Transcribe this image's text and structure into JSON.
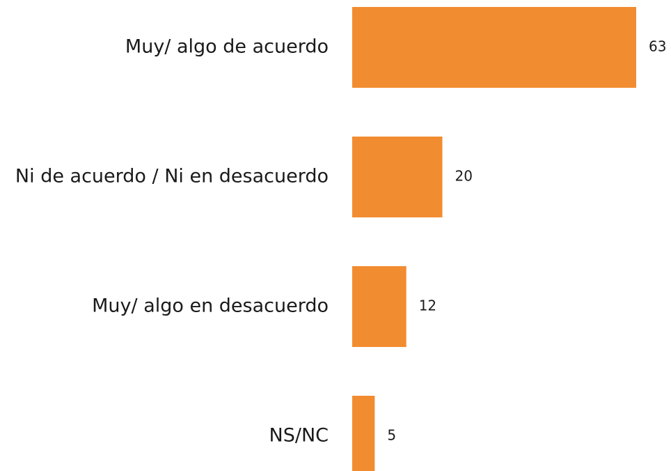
{
  "chart_data": {
    "type": "bar",
    "orientation": "horizontal",
    "categories": [
      "Muy/ algo de acuerdo",
      "Ni de acuerdo / Ni en desacuerdo",
      "Muy/ algo en desacuerdo",
      "NS/NC"
    ],
    "values": [
      63,
      20,
      12,
      5
    ],
    "color": "#f28c30"
  }
}
